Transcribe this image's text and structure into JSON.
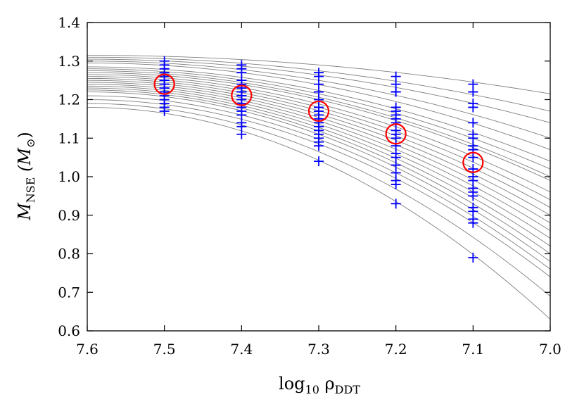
{
  "chart_data": {
    "type": "scatter",
    "x_axis": {
      "label_parts": [
        "log",
        "10",
        " ρ",
        "DDT"
      ],
      "range": [
        7.6,
        7.0
      ],
      "reversed": true,
      "ticks": [
        "7.6",
        "7.5",
        "7.4",
        "7.3",
        "7.2",
        "7.1",
        "7.0"
      ]
    },
    "y_axis": {
      "label_parts": [
        "M",
        "NSE",
        " (M",
        "⊙",
        ")"
      ],
      "range": [
        0.6,
        1.4
      ],
      "ticks": [
        "0.6",
        "0.7",
        "0.8",
        "0.9",
        "1.0",
        "1.1",
        "1.2",
        "1.3",
        "1.4"
      ]
    },
    "grid": false,
    "legend": "none",
    "colors": {
      "markers": "#0000ff",
      "means": "#ff0000",
      "curves": "#808080"
    },
    "series": [
      {
        "kind": "markers",
        "marker": "plus",
        "points": [
          {
            "x": 7.5,
            "ys": [
              1.3,
              1.29,
              1.28,
              1.27,
              1.26,
              1.25,
              1.25,
              1.24,
              1.24,
              1.23,
              1.22,
              1.22,
              1.21,
              1.2,
              1.19,
              1.18,
              1.17
            ]
          },
          {
            "x": 7.4,
            "ys": [
              1.29,
              1.28,
              1.27,
              1.25,
              1.24,
              1.23,
              1.22,
              1.22,
              1.21,
              1.21,
              1.2,
              1.19,
              1.18,
              1.17,
              1.16,
              1.14,
              1.13,
              1.11
            ]
          },
          {
            "x": 7.3,
            "ys": [
              1.27,
              1.26,
              1.24,
              1.22,
              1.2,
              1.18,
              1.18,
              1.17,
              1.17,
              1.16,
              1.15,
              1.14,
              1.13,
              1.12,
              1.11,
              1.1,
              1.09,
              1.08,
              1.04
            ]
          },
          {
            "x": 7.2,
            "ys": [
              1.26,
              1.24,
              1.22,
              1.22,
              1.18,
              1.17,
              1.16,
              1.15,
              1.14,
              1.12,
              1.11,
              1.1,
              1.08,
              1.06,
              1.05,
              1.03,
              1.01,
              0.99,
              0.98,
              0.93
            ]
          },
          {
            "x": 7.1,
            "ys": [
              1.24,
              1.22,
              1.19,
              1.18,
              1.14,
              1.11,
              1.1,
              1.08,
              1.07,
              1.05,
              1.02,
              1.0,
              0.99,
              0.97,
              0.96,
              0.95,
              0.92,
              0.91,
              0.89,
              0.88,
              0.79
            ]
          }
        ]
      },
      {
        "kind": "means",
        "marker": "circle",
        "points": [
          {
            "x": 7.5,
            "y": 1.24
          },
          {
            "x": 7.4,
            "y": 1.211
          },
          {
            "x": 7.3,
            "y": 1.17
          },
          {
            "x": 7.2,
            "y": 1.111
          },
          {
            "x": 7.1,
            "y": 1.037
          }
        ]
      },
      {
        "kind": "curves",
        "x_start": 7.6,
        "x_end": 7.0,
        "lines": [
          {
            "y_start": 1.315,
            "y_end": 1.215
          },
          {
            "y_start": 1.31,
            "y_end": 1.17
          },
          {
            "y_start": 1.305,
            "y_end": 1.14
          },
          {
            "y_start": 1.3,
            "y_end": 1.1
          },
          {
            "y_start": 1.295,
            "y_end": 1.07
          },
          {
            "y_start": 1.285,
            "y_end": 1.04
          },
          {
            "y_start": 1.28,
            "y_end": 1.02
          },
          {
            "y_start": 1.275,
            "y_end": 1.0
          },
          {
            "y_start": 1.27,
            "y_end": 0.99
          },
          {
            "y_start": 1.265,
            "y_end": 0.96
          },
          {
            "y_start": 1.26,
            "y_end": 0.94
          },
          {
            "y_start": 1.255,
            "y_end": 0.92
          },
          {
            "y_start": 1.25,
            "y_end": 0.9
          },
          {
            "y_start": 1.245,
            "y_end": 0.88
          },
          {
            "y_start": 1.24,
            "y_end": 0.86
          },
          {
            "y_start": 1.235,
            "y_end": 0.84
          },
          {
            "y_start": 1.23,
            "y_end": 0.82
          },
          {
            "y_start": 1.225,
            "y_end": 0.8
          },
          {
            "y_start": 1.22,
            "y_end": 0.78
          },
          {
            "y_start": 1.21,
            "y_end": 0.76
          },
          {
            "y_start": 1.2,
            "y_end": 0.74
          },
          {
            "y_start": 1.19,
            "y_end": 0.69
          },
          {
            "y_start": 1.18,
            "y_end": 0.63
          }
        ]
      }
    ]
  }
}
